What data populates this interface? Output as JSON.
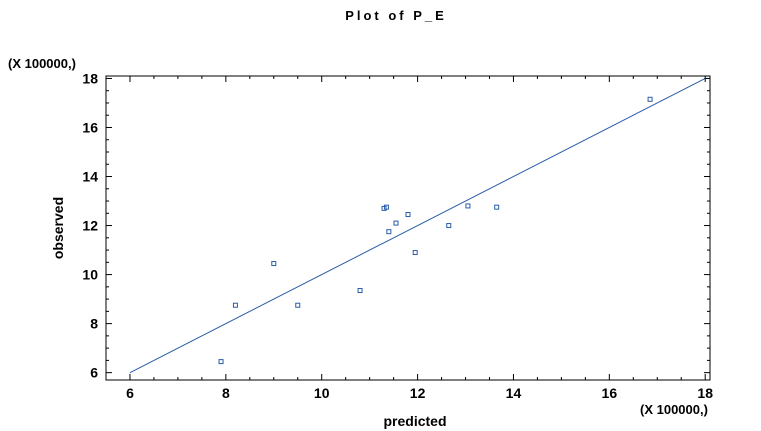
{
  "chart_data": {
    "type": "scatter",
    "title": "Plot of P_E",
    "xlabel": "predicted",
    "ylabel": "observed",
    "x_multiplier_label": "(X 100000,)",
    "y_multiplier_label": "(X 100000,)",
    "xlim": [
      5.5,
      18.1
    ],
    "ylim": [
      5.7,
      18.1
    ],
    "x_ticks": [
      6,
      8,
      10,
      12,
      14,
      16,
      18
    ],
    "y_ticks": [
      6,
      8,
      10,
      12,
      14,
      16,
      18
    ],
    "points": [
      {
        "x": 7.9,
        "y": 6.45
      },
      {
        "x": 8.2,
        "y": 8.75
      },
      {
        "x": 9.0,
        "y": 10.45
      },
      {
        "x": 9.5,
        "y": 8.75
      },
      {
        "x": 10.8,
        "y": 9.35
      },
      {
        "x": 11.3,
        "y": 12.7
      },
      {
        "x": 11.35,
        "y": 12.75
      },
      {
        "x": 11.4,
        "y": 11.75
      },
      {
        "x": 11.55,
        "y": 12.1
      },
      {
        "x": 11.8,
        "y": 12.45
      },
      {
        "x": 11.95,
        "y": 10.9
      },
      {
        "x": 12.65,
        "y": 12.0
      },
      {
        "x": 13.05,
        "y": 12.8
      },
      {
        "x": 13.65,
        "y": 12.75
      },
      {
        "x": 16.85,
        "y": 17.15
      }
    ],
    "reference_line": {
      "from": [
        6,
        6
      ],
      "to": [
        18,
        18
      ]
    },
    "grid": false,
    "colors": {
      "points": "#2a5ca8",
      "line": "#2a5ca8",
      "axes": "#000000"
    }
  }
}
